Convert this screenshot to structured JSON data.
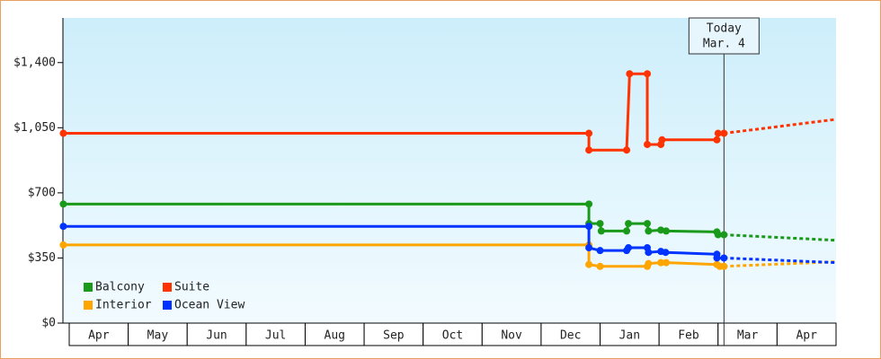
{
  "chart_data": {
    "type": "line",
    "xlim": [
      -0.1,
      13
    ],
    "ylim": [
      0,
      1640
    ],
    "yticks": [
      {
        "value": 0,
        "label": "$0"
      },
      {
        "value": 350,
        "label": "$350"
      },
      {
        "value": 700,
        "label": "$700"
      },
      {
        "value": 1050,
        "label": "$1,050"
      },
      {
        "value": 1400,
        "label": "$1,400"
      }
    ],
    "categories": [
      "Apr",
      "May",
      "Jun",
      "Jul",
      "Aug",
      "Sep",
      "Oct",
      "Nov",
      "Dec",
      "Jan",
      "Feb",
      "Mar",
      "Apr"
    ],
    "annotation": {
      "x": 11.1,
      "lines": [
        "Today",
        "Mar. 4"
      ]
    },
    "series": [
      {
        "name": "Balcony",
        "color": "#1a9a1a",
        "x": [
          -0.1,
          8.81,
          8.81,
          9.0,
          9.02,
          9.45,
          9.48,
          9.8,
          9.82,
          10.03,
          10.12,
          10.98,
          11.0,
          11.1
        ],
        "values": [
          640,
          640,
          535,
          535,
          495,
          495,
          535,
          535,
          495,
          500,
          495,
          490,
          475,
          475
        ],
        "forecast": {
          "x": [
            11.1,
            13
          ],
          "values": [
            475,
            445
          ]
        }
      },
      {
        "name": "Suite",
        "color": "#ff3300",
        "x": [
          -0.1,
          8.81,
          8.81,
          9.45,
          9.5,
          9.8,
          9.8,
          10.03,
          10.05,
          10.98,
          11.0,
          11.1
        ],
        "values": [
          1020,
          1020,
          930,
          930,
          1340,
          1340,
          960,
          960,
          985,
          985,
          1020,
          1020
        ],
        "forecast": {
          "x": [
            11.1,
            13
          ],
          "values": [
            1020,
            1095
          ]
        }
      },
      {
        "name": "Interior",
        "color": "#ffa500",
        "x": [
          -0.1,
          8.81,
          8.81,
          9.0,
          9.8,
          9.82,
          10.03,
          10.12,
          10.98,
          11.03,
          11.1
        ],
        "values": [
          420,
          420,
          315,
          305,
          305,
          320,
          325,
          325,
          315,
          305,
          305
        ],
        "forecast": {
          "x": [
            11.1,
            13
          ],
          "values": [
            305,
            330
          ]
        }
      },
      {
        "name": "Ocean View",
        "color": "#0033ff",
        "x": [
          -0.1,
          8.81,
          8.81,
          9.0,
          9.45,
          9.48,
          9.8,
          9.82,
          10.03,
          10.11,
          10.98,
          10.98,
          11.1
        ],
        "values": [
          520,
          520,
          405,
          390,
          390,
          405,
          405,
          380,
          385,
          380,
          370,
          350,
          350
        ],
        "forecast": {
          "x": [
            11.1,
            13
          ],
          "values": [
            350,
            325
          ]
        }
      }
    ]
  }
}
